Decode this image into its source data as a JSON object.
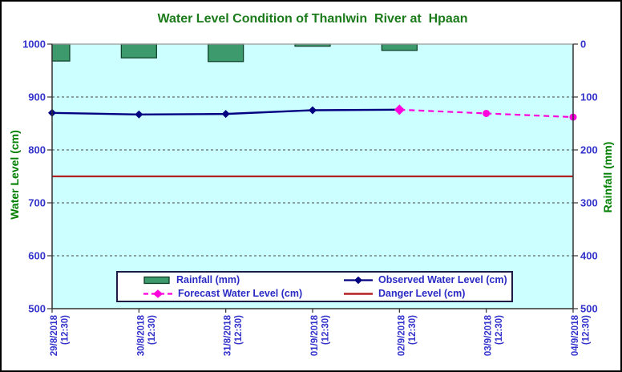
{
  "chart_data": {
    "type": "line",
    "title": "Water Level Condition of Thanlwin  River at  Hpaan",
    "categories": [
      {
        "date": "29/8/2018",
        "time": "(12:30)"
      },
      {
        "date": "30/8/2018",
        "time": "(12:30)"
      },
      {
        "date": "31/8/2018",
        "time": "(12:30)"
      },
      {
        "date": "01/9/2018",
        "time": "(12:30)"
      },
      {
        "date": "02/9/2018",
        "time": "(12:30)"
      },
      {
        "date": "03/9/2018",
        "time": "(12:30)"
      },
      {
        "date": "04/9/2018",
        "time": "(12:30)"
      }
    ],
    "series": [
      {
        "name": "Rainfall (mm)",
        "type": "bar",
        "axis": "right",
        "color": "#3c9a6c",
        "border_color": "#0b3b24",
        "values": [
          32,
          26,
          33,
          4,
          12,
          0,
          0
        ]
      },
      {
        "name": "Observed Water Level (cm)",
        "type": "line",
        "axis": "left",
        "color": "#000080",
        "marker": "diamond",
        "values": [
          870,
          867,
          868,
          875,
          876,
          null,
          null
        ]
      },
      {
        "name": "Forecast Water Level (cm)",
        "type": "line",
        "axis": "left",
        "style": "dashed",
        "color": "#ff00dd",
        "marker": "circle",
        "values": [
          null,
          null,
          null,
          null,
          876,
          869,
          862
        ]
      },
      {
        "name": "Danger Level (cm)",
        "type": "hline",
        "axis": "left",
        "color": "#b22222",
        "value": 750
      }
    ],
    "left_axis": {
      "title": "Water Level (cm)",
      "min": 500,
      "max": 1000,
      "ticks": [
        1000,
        900,
        800,
        700,
        600,
        500
      ],
      "tick_color": "#3333cc",
      "title_color": "#008000"
    },
    "right_axis": {
      "title": "Rainfall (mm)",
      "min": 0,
      "max": 500,
      "inverted": true,
      "ticks": [
        0,
        100,
        200,
        300,
        400,
        500
      ],
      "tick_color": "#3333cc",
      "title_color": "#008000"
    },
    "plot": {
      "background": "#ccffff",
      "gridline_style": "dashed",
      "gridline_color": "#444444",
      "top_border_color": "#9a9a9a",
      "axis_color": "#333333"
    },
    "legend_position": "inside-bottom"
  }
}
